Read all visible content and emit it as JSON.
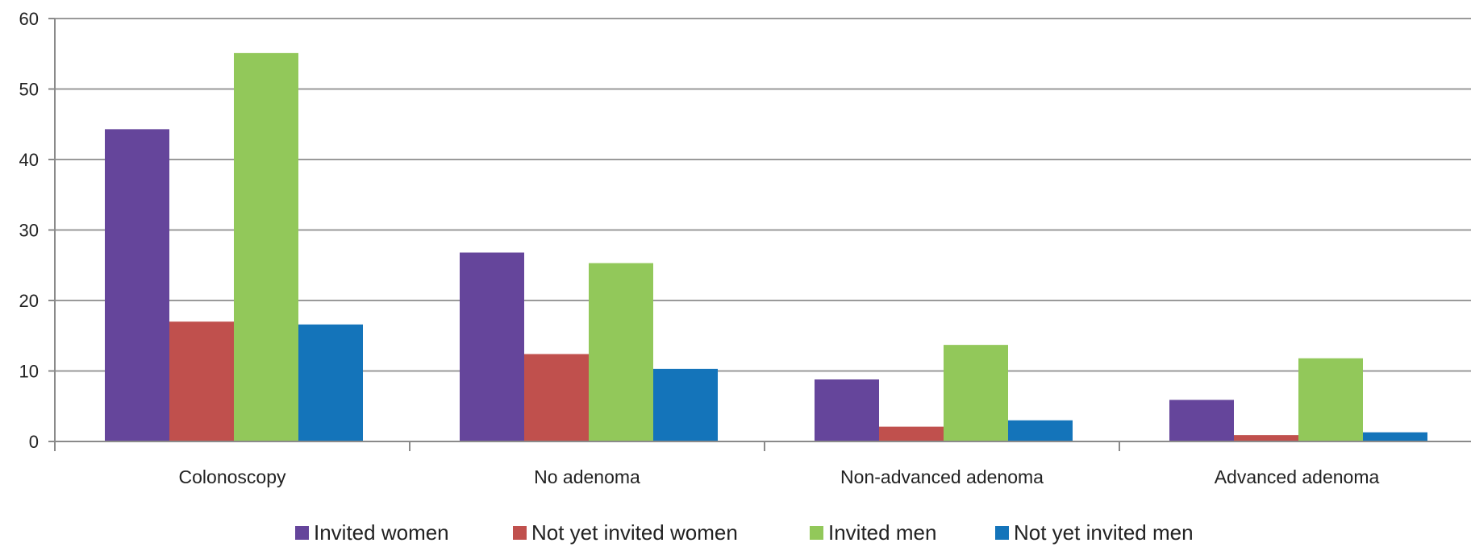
{
  "chart_data": {
    "type": "bar",
    "categories": [
      "Colonoscopy",
      "No adenoma",
      "Non-advanced adenoma",
      "Advanced adenoma"
    ],
    "series": [
      {
        "name": "Invited women",
        "color": "#65459B",
        "values": [
          44.3,
          26.8,
          8.8,
          5.9
        ]
      },
      {
        "name": "Not yet invited women",
        "color": "#C0504D",
        "values": [
          17.0,
          12.4,
          2.1,
          0.9
        ]
      },
      {
        "name": "Invited men",
        "color": "#92C85A",
        "values": [
          55.1,
          25.3,
          13.7,
          11.8
        ]
      },
      {
        "name": "Not yet invited men",
        "color": "#1474BA",
        "values": [
          16.6,
          10.3,
          3.0,
          1.3
        ]
      }
    ],
    "ylim": [
      0,
      60
    ],
    "yticks": [
      0,
      10,
      20,
      30,
      40,
      50,
      60
    ],
    "grid": true,
    "legend_position": "bottom",
    "title": "",
    "xlabel": "",
    "ylabel": ""
  }
}
